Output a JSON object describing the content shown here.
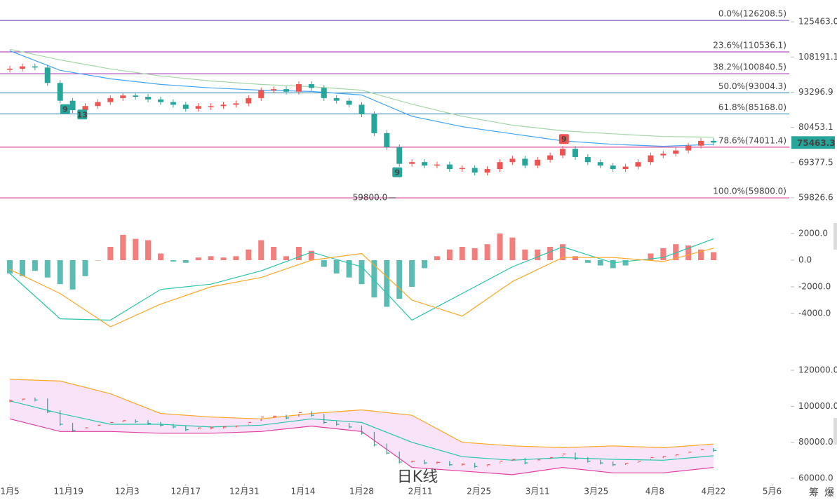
{
  "chart_data": [
    {
      "type": "candlestick",
      "log_scale": true,
      "ylim": [
        57565,
        137540
      ],
      "yticks": [
        {
          "value": 125463,
          "label": "125463.0"
        },
        108191.1,
        93296.9,
        80453.1,
        69377.5,
        59826.6
      ],
      "xlim": [
        -2.35,
        186.1
      ],
      "x": [
        0,
        3,
        6,
        9,
        12,
        15,
        18,
        21,
        24,
        27,
        30,
        33,
        36,
        39,
        42,
        45,
        48,
        51,
        54,
        57,
        60,
        63,
        66,
        69,
        72,
        75,
        78,
        81,
        84,
        87,
        90,
        93,
        96,
        99,
        102,
        105,
        108,
        111,
        114,
        117,
        120,
        123,
        126,
        129,
        132,
        135,
        138,
        141,
        144,
        147,
        150,
        153,
        156,
        159,
        162,
        165,
        168
      ],
      "values": [
        103000,
        104000,
        103500,
        97000,
        90000,
        86500,
        88000,
        89500,
        91000,
        92000,
        91500,
        90500,
        89500,
        88500,
        87000,
        88000,
        88000,
        88500,
        89000,
        91000,
        94000,
        94500,
        93500,
        96500,
        95000,
        91000,
        90000,
        88500,
        85000,
        78500,
        74000,
        69000,
        69500,
        68500,
        68800,
        67500,
        67800,
        66500,
        67500,
        69500,
        70500,
        68500,
        70200,
        71500,
        73500,
        71000,
        69500,
        68500,
        67500,
        68200,
        69500,
        71500,
        72000,
        73000,
        74500,
        76000,
        75463.3
      ],
      "up_color": "#ef5350",
      "down_color": "#26a69a",
      "moving_averages": [
        {
          "color": "#a5d6a7",
          "x": [
            0,
            12,
            24,
            36,
            48,
            60,
            72,
            84,
            96,
            108,
            120,
            132,
            144,
            156,
            168
          ],
          "values": [
            111800,
            106900,
            102900,
            99900,
            97800,
            96400,
            95500,
            94100,
            88700,
            84300,
            81200,
            79300,
            78300,
            77400,
            77200
          ]
        },
        {
          "color": "#42a5f5",
          "x": [
            0,
            12,
            24,
            36,
            48,
            60,
            72,
            84,
            96,
            108,
            120,
            132,
            144,
            156,
            168
          ],
          "values": [
            111100,
            102300,
            98700,
            96400,
            95000,
            94100,
            93600,
            92200,
            84300,
            80700,
            78300,
            76000,
            74900,
            74300,
            74900
          ]
        }
      ],
      "fib_levels": [
        {
          "label": "0.0%(126208.5)",
          "value": 126208.5,
          "color": "#5e35b1"
        },
        {
          "label": "23.6%(110536.1)",
          "value": 110536.1,
          "color": "#9c27b0"
        },
        {
          "label": "38.2%(100840.5)",
          "value": 100840.5,
          "color": "#9c27b0"
        },
        {
          "label": "50.0%(93004.3)",
          "value": 93004.3,
          "color": "#1e7fb0"
        },
        {
          "label": "61.8%(85168.0)",
          "value": 85168,
          "color": "#1e7fb0"
        },
        {
          "label": "78.6%(74011.4)",
          "value": 74011.4,
          "color": "#d81b80"
        },
        {
          "label": "100.0%(59800.0)",
          "value": 59800,
          "color": "#d81b80"
        }
      ],
      "last_price": 75463.3,
      "last_price_color": "#26a69a",
      "low_marker": {
        "value": 59800,
        "label": "59800.0",
        "x": 92.5
      },
      "td_markers": [
        {
          "count": 9,
          "x": 13.2,
          "color": "#26a69a",
          "position": "below"
        },
        {
          "count": 13,
          "x": 17.3,
          "color": "#26a69a",
          "position": "below"
        },
        {
          "count": 9,
          "x": 132.3,
          "color": "#ef5350",
          "position": "above"
        },
        {
          "count": 9,
          "x": 92.5,
          "color": "#26a69a",
          "position": "below"
        }
      ]
    },
    {
      "type": "macd",
      "ylim": [
        -6300,
        3600
      ],
      "yticks": [
        {
          "value": 2000,
          "label": "2000.0"
        },
        {
          "value": 0,
          "label": "0.0"
        },
        {
          "value": -2000,
          "label": "-2000.0"
        },
        {
          "value": -4000,
          "label": "-4000.0"
        }
      ],
      "xlim": [
        -2.35,
        186.1
      ],
      "x": [
        0,
        3,
        6,
        9,
        12,
        15,
        18,
        21,
        24,
        27,
        30,
        33,
        36,
        39,
        42,
        45,
        48,
        51,
        54,
        57,
        60,
        63,
        66,
        69,
        72,
        75,
        78,
        81,
        84,
        87,
        90,
        93,
        96,
        99,
        102,
        105,
        108,
        111,
        114,
        117,
        120,
        123,
        126,
        129,
        132,
        135,
        138,
        141,
        144,
        147,
        150,
        153,
        156,
        159,
        162,
        165,
        168
      ],
      "histogram": [
        -1000,
        -1200,
        -800,
        -1300,
        -1800,
        -2200,
        -1200,
        0,
        1000,
        1900,
        1600,
        1500,
        500,
        -100,
        -200,
        200,
        300,
        200,
        300,
        800,
        1500,
        1000,
        300,
        1000,
        700,
        -500,
        -1000,
        -1300,
        -1800,
        -2800,
        -3500,
        -2900,
        -2000,
        -600,
        300,
        800,
        1000,
        900,
        1200,
        2000,
        1700,
        800,
        800,
        1000,
        1200,
        300,
        -200,
        -400,
        -600,
        -400,
        0,
        500,
        900,
        1200,
        1100,
        800,
        600
      ],
      "up_color": "#ef5350",
      "down_color": "#26a69a",
      "lines": [
        {
          "color": "#26c6a9",
          "x": [
            0,
            12,
            24,
            36,
            48,
            60,
            72,
            84,
            96,
            108,
            120,
            132,
            144,
            156,
            168
          ],
          "values": [
            -1000,
            -4400,
            -4500,
            -2200,
            -1800,
            -800,
            600,
            -500,
            -4500,
            -2500,
            -500,
            1000,
            -200,
            200,
            1600
          ]
        },
        {
          "color": "#ffa726",
          "x": [
            0,
            12,
            24,
            36,
            48,
            60,
            72,
            84,
            96,
            108,
            120,
            132,
            144,
            156,
            168
          ],
          "values": [
            -700,
            -2500,
            -5000,
            -3300,
            -2000,
            -1300,
            0,
            500,
            -3000,
            -4200,
            -1600,
            200,
            200,
            -100,
            900
          ]
        }
      ]
    },
    {
      "type": "bollinger",
      "ylim": [
        56881,
        134815
      ],
      "yticks": [
        {
          "value": 120000,
          "label": "120000.0"
        },
        {
          "value": 100000,
          "label": "100000.0"
        },
        {
          "value": 80000,
          "label": "80000.0"
        },
        {
          "value": 60000,
          "label": "60000.0"
        }
      ],
      "xlim": [
        -2.35,
        186.1
      ],
      "xticks": [
        {
          "value": 0,
          "label": "1月5"
        },
        {
          "value": 14,
          "label": "11月19"
        },
        {
          "value": 28,
          "label": "12月3"
        },
        {
          "value": 42,
          "label": "12月17"
        },
        {
          "value": 56,
          "label": "12月31"
        },
        {
          "value": 70,
          "label": "1月14"
        },
        {
          "value": 84,
          "label": "1月28"
        },
        {
          "value": 98,
          "label": "2月11"
        },
        {
          "value": 112,
          "label": "2月25"
        },
        {
          "value": 126,
          "label": "3月11"
        },
        {
          "value": 140,
          "label": "3月25"
        },
        {
          "value": 154,
          "label": "4月8"
        },
        {
          "value": 168,
          "label": "4月22"
        },
        {
          "value": 182,
          "label": "5月6"
        }
      ],
      "fill_color": "#f6dcf8",
      "bands": [
        {
          "color": "#ffa726",
          "x": [
            0,
            12,
            24,
            36,
            48,
            60,
            72,
            84,
            96,
            108,
            120,
            132,
            144,
            156,
            168
          ],
          "values": [
            115000,
            114000,
            107000,
            96000,
            94000,
            93000,
            96000,
            98000,
            95000,
            80000,
            78000,
            77000,
            78000,
            77000,
            79000
          ]
        },
        {
          "color": "#26c6a9",
          "x": [
            0,
            12,
            24,
            36,
            48,
            60,
            72,
            84,
            96,
            108,
            120,
            132,
            144,
            156,
            168
          ],
          "values": [
            103000,
            96000,
            90000,
            90000,
            88500,
            89500,
            93000,
            91000,
            80000,
            72000,
            70000,
            71500,
            70500,
            70000,
            72500
          ]
        },
        {
          "color": "#e040a0",
          "x": [
            0,
            12,
            24,
            36,
            48,
            60,
            72,
            84,
            96,
            108,
            120,
            132,
            144,
            156,
            168
          ],
          "values": [
            93000,
            86000,
            86000,
            85000,
            85000,
            86000,
            89000,
            86000,
            66000,
            64000,
            62000,
            66000,
            63000,
            63000,
            66000
          ]
        }
      ],
      "watermark": "日K线"
    }
  ],
  "tabs": [
    "筹",
    "爆"
  ]
}
